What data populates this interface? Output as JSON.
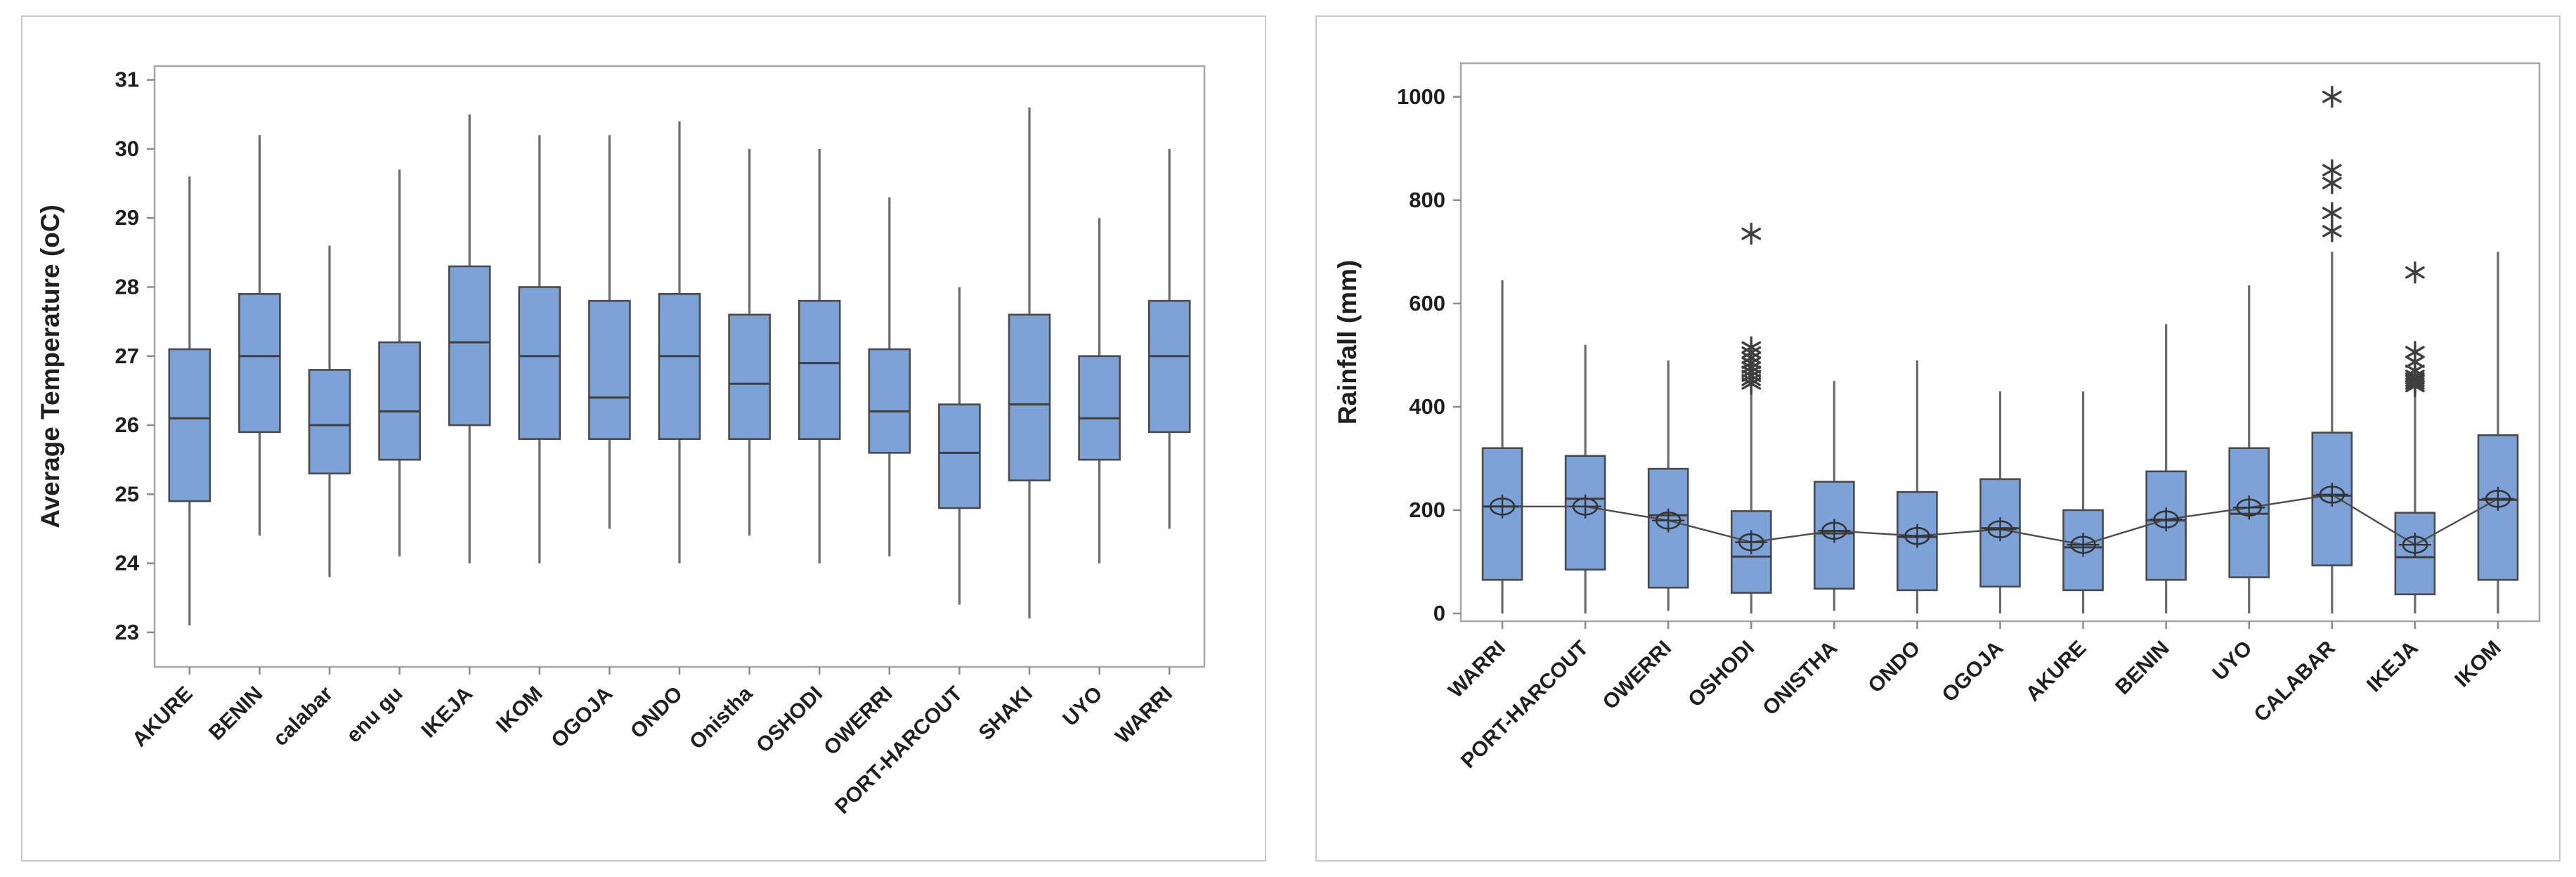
{
  "colors": {
    "box_fill": "#7CA2D8",
    "box_stroke": "#4A4A4A",
    "median": "#3F3F3F",
    "whisker": "#6B6B6B",
    "frame": "#A6A6A6",
    "tick": "#8C8C8C",
    "text": "#1F1F1F",
    "mean_line": "#4D4D4D",
    "mean_marker": "#333333",
    "outlier": "#3F3F3F",
    "card_border": "#C9C9C9",
    "background": "#FFFFFF"
  },
  "chart_data": [
    {
      "id": "temperature",
      "type": "box",
      "title": "",
      "xlabel": "",
      "ylabel": "Average Temperature (oC)",
      "ylim": [
        22.5,
        31.2
      ],
      "yticks": [
        23,
        24,
        25,
        26,
        27,
        28,
        29,
        30,
        31
      ],
      "grid": false,
      "show_mean": false,
      "categories": [
        "AKURE",
        "BENIN",
        "calabar",
        "enu gu",
        "IKEJA",
        "IKOM",
        "OGOJA",
        "ONDO",
        "Onistha",
        "OSHODI",
        "OWERRI",
        "PORT-HARCOUT",
        "SHAKI",
        "UYO",
        "WARRI"
      ],
      "boxes": [
        {
          "label": "AKURE",
          "low": 23.1,
          "q1": 24.9,
          "median": 26.1,
          "q3": 27.1,
          "high": 29.6,
          "outliers": []
        },
        {
          "label": "BENIN",
          "low": 24.4,
          "q1": 25.9,
          "median": 27.0,
          "q3": 27.9,
          "high": 30.2,
          "outliers": []
        },
        {
          "label": "calabar",
          "low": 23.8,
          "q1": 25.3,
          "median": 26.0,
          "q3": 26.8,
          "high": 28.6,
          "outliers": []
        },
        {
          "label": "enu gu",
          "low": 24.1,
          "q1": 25.5,
          "median": 26.2,
          "q3": 27.2,
          "high": 29.7,
          "outliers": []
        },
        {
          "label": "IKEJA",
          "low": 24.0,
          "q1": 26.0,
          "median": 27.2,
          "q3": 28.3,
          "high": 30.5,
          "outliers": []
        },
        {
          "label": "IKOM",
          "low": 24.0,
          "q1": 25.8,
          "median": 27.0,
          "q3": 28.0,
          "high": 30.2,
          "outliers": []
        },
        {
          "label": "OGOJA",
          "low": 24.5,
          "q1": 25.8,
          "median": 26.4,
          "q3": 27.8,
          "high": 30.2,
          "outliers": []
        },
        {
          "label": "ONDO",
          "low": 24.0,
          "q1": 25.8,
          "median": 27.0,
          "q3": 27.9,
          "high": 30.4,
          "outliers": []
        },
        {
          "label": "Onistha",
          "low": 24.4,
          "q1": 25.8,
          "median": 26.6,
          "q3": 27.6,
          "high": 30.0,
          "outliers": []
        },
        {
          "label": "OSHODI",
          "low": 24.0,
          "q1": 25.8,
          "median": 26.9,
          "q3": 27.8,
          "high": 30.0,
          "outliers": []
        },
        {
          "label": "OWERRI",
          "low": 24.1,
          "q1": 25.6,
          "median": 26.2,
          "q3": 27.1,
          "high": 29.3,
          "outliers": []
        },
        {
          "label": "PORT-HARCOUT",
          "low": 23.4,
          "q1": 24.8,
          "median": 25.6,
          "q3": 26.3,
          "high": 28.0,
          "outliers": []
        },
        {
          "label": "SHAKI",
          "low": 23.2,
          "q1": 25.2,
          "median": 26.3,
          "q3": 27.6,
          "high": 30.6,
          "outliers": []
        },
        {
          "label": "UYO",
          "low": 24.0,
          "q1": 25.5,
          "median": 26.1,
          "q3": 27.0,
          "high": 29.0,
          "outliers": []
        },
        {
          "label": "WARRI",
          "low": 24.5,
          "q1": 25.9,
          "median": 27.0,
          "q3": 27.8,
          "high": 30.0,
          "outliers": []
        }
      ]
    },
    {
      "id": "rainfall",
      "type": "box",
      "title": "",
      "xlabel": "",
      "ylabel": "Rainfall (mm)",
      "ylim": [
        -15,
        1065
      ],
      "yticks": [
        0,
        200,
        400,
        600,
        800,
        1000
      ],
      "grid": false,
      "show_mean": true,
      "categories": [
        "WARRI",
        "PORT-HARCOUT",
        "OWERRI",
        "OSHODI",
        "ONISTHA",
        "ONDO",
        "OGOJA",
        "AKURE",
        "BENIN",
        "UYO",
        "CALABAR",
        "IKEJA",
        "IKOM"
      ],
      "boxes": [
        {
          "label": "WARRI",
          "low": 0,
          "q1": 65,
          "median": 207,
          "q3": 320,
          "high": 645,
          "mean": 207,
          "outliers": []
        },
        {
          "label": "PORT-HARCOUT",
          "low": 0,
          "q1": 85,
          "median": 222,
          "q3": 305,
          "high": 520,
          "mean": 207,
          "outliers": []
        },
        {
          "label": "OWERRI",
          "low": 5,
          "q1": 50,
          "median": 190,
          "q3": 280,
          "high": 490,
          "mean": 180,
          "outliers": []
        },
        {
          "label": "OSHODI",
          "low": 0,
          "q1": 40,
          "median": 110,
          "q3": 198,
          "high": 430,
          "mean": 138,
          "outliers": [
            445,
            452,
            460,
            468,
            476,
            485,
            495,
            505,
            515,
            735
          ]
        },
        {
          "label": "ONISTHA",
          "low": 5,
          "q1": 48,
          "median": 155,
          "q3": 255,
          "high": 450,
          "mean": 160,
          "outliers": []
        },
        {
          "label": "ONDO",
          "low": 0,
          "q1": 45,
          "median": 148,
          "q3": 235,
          "high": 490,
          "mean": 150,
          "outliers": []
        },
        {
          "label": "OGOJA",
          "low": 0,
          "q1": 52,
          "median": 165,
          "q3": 260,
          "high": 430,
          "mean": 163,
          "outliers": []
        },
        {
          "label": "AKURE",
          "low": 0,
          "q1": 45,
          "median": 128,
          "q3": 200,
          "high": 430,
          "mean": 133,
          "outliers": []
        },
        {
          "label": "BENIN",
          "low": 0,
          "q1": 65,
          "median": 180,
          "q3": 275,
          "high": 560,
          "mean": 182,
          "outliers": []
        },
        {
          "label": "UYO",
          "low": 0,
          "q1": 70,
          "median": 193,
          "q3": 320,
          "high": 635,
          "mean": 205,
          "outliers": []
        },
        {
          "label": "CALABAR",
          "low": 0,
          "q1": 93,
          "median": 228,
          "q3": 350,
          "high": 700,
          "mean": 230,
          "outliers": [
            740,
            775,
            833,
            858,
            1000
          ]
        },
        {
          "label": "IKEJA",
          "low": 0,
          "q1": 37,
          "median": 109,
          "q3": 195,
          "high": 435,
          "mean": 133,
          "outliers": [
            440,
            445,
            450,
            455,
            460,
            470,
            487,
            506,
            660
          ]
        },
        {
          "label": "IKOM",
          "low": 0,
          "q1": 65,
          "median": 220,
          "q3": 345,
          "high": 700,
          "mean": 222,
          "outliers": []
        }
      ]
    }
  ]
}
